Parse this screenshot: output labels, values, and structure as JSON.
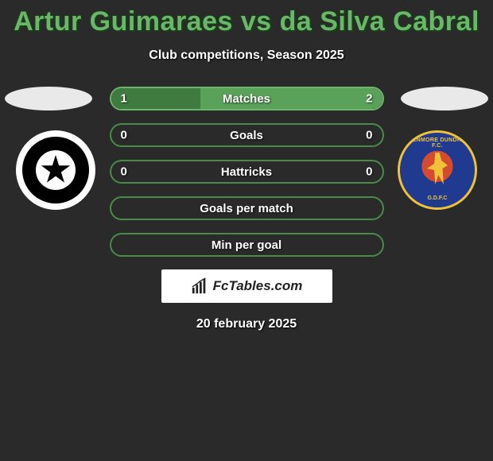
{
  "title": "Artur Guimaraes vs da Silva Cabral",
  "subtitle": "Club competitions, Season 2025",
  "date": "20 february 2025",
  "brand": "FcTables.com",
  "colors": {
    "title": "#6bb66a",
    "row_border_even": "#6bb66a",
    "row_border_odd": "#4a8a49",
    "fill_left": "#3f7a3f",
    "fill_right": "#5aa159",
    "background": "#2a2a2a"
  },
  "left_badge": {
    "outer": "#ffffff",
    "ring": "#000000",
    "center": "#ffffff",
    "star": "#000000"
  },
  "right_badge": {
    "ring": "#203a8f",
    "center": "#d64b2f",
    "accent": "#f0c23c",
    "top_text": "GLENMORE DUNDRUM F.C.",
    "bottom_text": "G.D.F.C"
  },
  "rows": [
    {
      "label": "Matches",
      "left_val": "1",
      "right_val": "2",
      "left_pct": 33,
      "right_pct": 67,
      "show_vals": true
    },
    {
      "label": "Goals",
      "left_val": "0",
      "right_val": "0",
      "left_pct": 0,
      "right_pct": 0,
      "show_vals": true
    },
    {
      "label": "Hattricks",
      "left_val": "0",
      "right_val": "0",
      "left_pct": 0,
      "right_pct": 0,
      "show_vals": true
    },
    {
      "label": "Goals per match",
      "left_val": "",
      "right_val": "",
      "left_pct": 0,
      "right_pct": 0,
      "show_vals": false
    },
    {
      "label": "Min per goal",
      "left_val": "",
      "right_val": "",
      "left_pct": 0,
      "right_pct": 0,
      "show_vals": false
    }
  ]
}
